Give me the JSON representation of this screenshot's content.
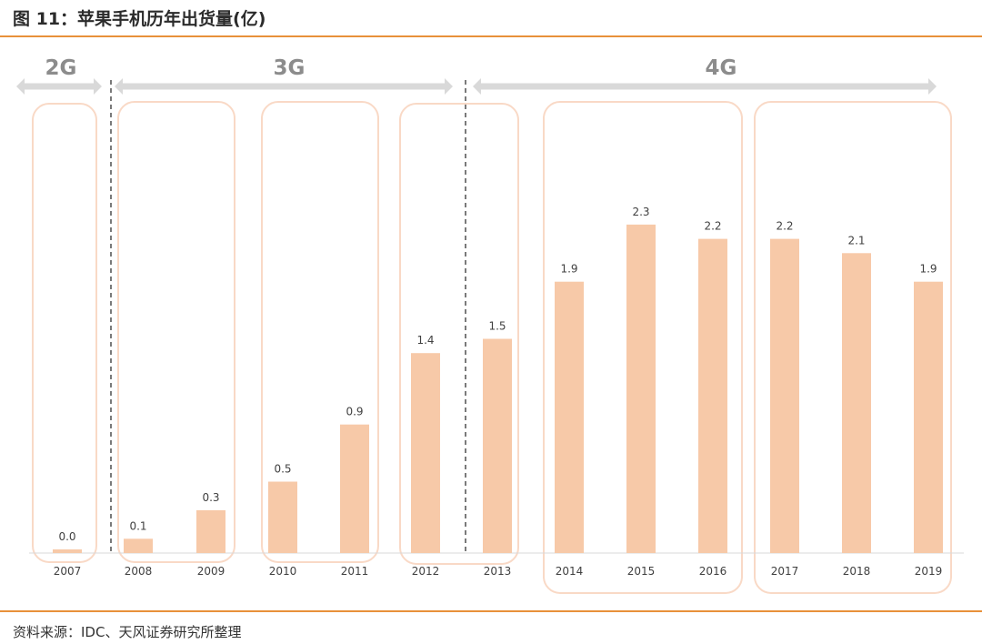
{
  "header": {
    "title": "图 11：苹果手机历年出货量(亿)"
  },
  "footer": {
    "source": "资料来源：IDC、天风证券研究所整理"
  },
  "colors": {
    "accent": "#e8913a",
    "bar": "#f7c9a8",
    "group_border": "#f9d9c6",
    "arrow": "#d9d9d9"
  },
  "generations": [
    "2G",
    "3G",
    "4G"
  ],
  "chart_data": {
    "type": "bar",
    "title": "",
    "xlabel": "",
    "ylabel": "",
    "categories": [
      "2007",
      "2008",
      "2009",
      "2010",
      "2011",
      "2012",
      "2013",
      "2014",
      "2015",
      "2016",
      "2017",
      "2018",
      "2019"
    ],
    "values": [
      0.0,
      0.1,
      0.3,
      0.5,
      0.9,
      1.4,
      1.5,
      1.9,
      2.3,
      2.2,
      2.2,
      2.1,
      1.9
    ],
    "value_labels": [
      "0.0",
      "0.1",
      "0.3",
      "0.5",
      "0.9",
      "1.4",
      "1.5",
      "1.9",
      "2.3",
      "2.2",
      "2.2",
      "2.1",
      "1.9"
    ],
    "ylim": [
      0,
      2.3
    ],
    "grid": false,
    "annotations": [
      {
        "label": "2G",
        "from": "2007",
        "to": "2007"
      },
      {
        "label": "3G",
        "from": "2008",
        "to": "2012"
      },
      {
        "label": "4G",
        "from": "2013",
        "to": "2019"
      }
    ]
  }
}
